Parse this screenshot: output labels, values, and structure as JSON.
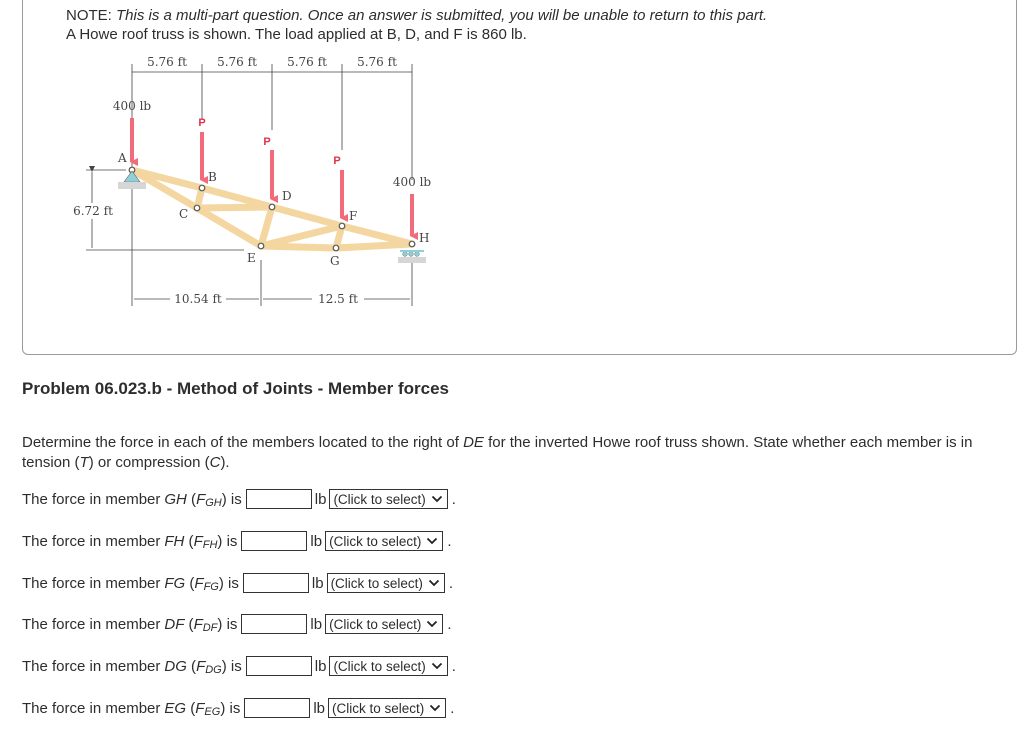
{
  "note": {
    "prefix": "NOTE: ",
    "text": "This is a multi-part question. Once an answer is submitted, you will be unable to return to this part.",
    "line2": "A Howe roof truss is shown. The load applied at B, D, and F is 860 lb."
  },
  "figure": {
    "top_dims": [
      "5.76 ft",
      "5.76 ft",
      "5.76 ft",
      "5.76 ft"
    ],
    "left_dim": "6.72 ft",
    "bottom_dims": [
      "10.54 ft",
      "12.5 ft"
    ],
    "loads": {
      "A": "400 lb",
      "H": "400 lb",
      "P": "P"
    },
    "joints": [
      "A",
      "B",
      "C",
      "D",
      "E",
      "F",
      "G",
      "H"
    ],
    "colors": {
      "load_arrow": "#f26b7a",
      "member": "#f4d6a0",
      "support": "#8fcfd8"
    }
  },
  "problem": {
    "title": "Problem 06.023.b - Method of Joints - Member forces",
    "description_parts": [
      "Determine the force in each of the members located to the right of ",
      "DE",
      " for the inverted Howe roof truss shown. State whether each member is in tension (",
      "T",
      ") or compression (",
      "C",
      ")."
    ]
  },
  "questions": [
    {
      "prefix": "The force in member ",
      "member": "GH",
      "force_main": "F",
      "force_sub": "GH",
      "suffix": "is",
      "value": "",
      "unit": "lb",
      "select": "(Click to select)"
    },
    {
      "prefix": "The force in member ",
      "member": "FH",
      "force_main": "F",
      "force_sub": "FH",
      "suffix": "is",
      "value": "",
      "unit": "lb",
      "select": "(Click to select)"
    },
    {
      "prefix": "The force in member ",
      "member": "FG",
      "force_main": "F",
      "force_sub": "FG",
      "suffix": "is",
      "value": "",
      "unit": "lb",
      "select": "(Click to select)"
    },
    {
      "prefix": "The force in member ",
      "member": "DF",
      "force_main": "F",
      "force_sub": "DF",
      "suffix": "is",
      "value": "",
      "unit": "lb",
      "select": "(Click to select)"
    },
    {
      "prefix": "The force in member ",
      "member": "DG",
      "force_main": "F",
      "force_sub": "DG",
      "suffix": "is",
      "value": "",
      "unit": "lb",
      "select": "(Click to select)"
    },
    {
      "prefix": "The force in member ",
      "member": "EG",
      "force_main": "F",
      "force_sub": "EG",
      "suffix": "is",
      "value": "",
      "unit": "lb",
      "select": "(Click to select)"
    }
  ],
  "period": "."
}
